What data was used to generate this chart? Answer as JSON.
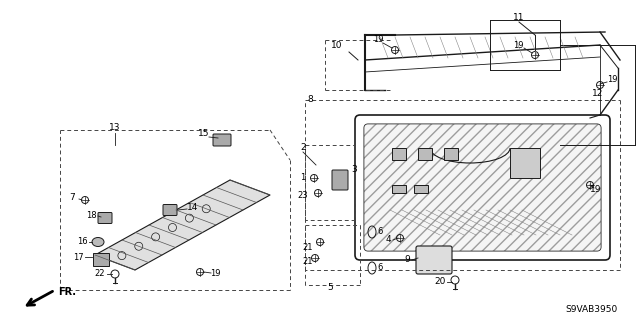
{
  "bg_color": "#ffffff",
  "fig_width": 6.4,
  "fig_height": 3.19,
  "dpi": 100,
  "diagram_code": "S9VAB3950",
  "line_color": "#1a1a1a",
  "text_color": "#000000",
  "dash_color": "#444444"
}
